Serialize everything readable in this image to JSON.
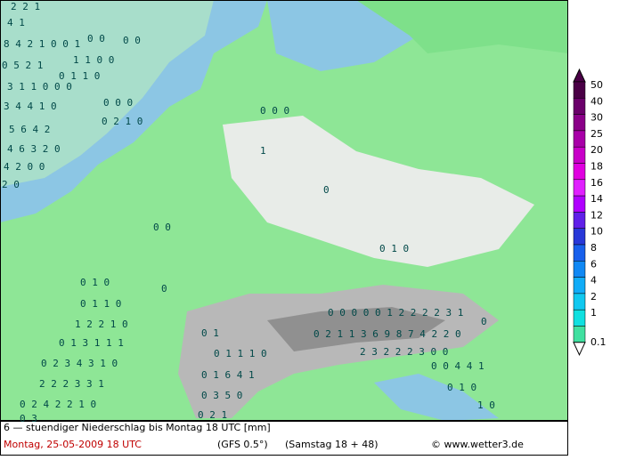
{
  "map": {
    "values": [
      "2 2 1",
      "4 1",
      "0 0",
      "0 0",
      "8 4 2 1 0 0 1",
      "1 1 0 0",
      "0 5 2 1",
      "0 1 1 0",
      "3 1 1 0 0 0",
      "0 0 0",
      "3 4 4 1 0",
      "0 2 1 0",
      "5 6 4 2",
      "4 6 3 2 0",
      "4 2 0 0",
      "2 0",
      "0 0 0",
      "1",
      "0",
      "0 0",
      "0 1 0",
      "0 1 0",
      "0",
      "0 1 1 0",
      "1 2 2 1 0",
      "0 1 3 1 1 1",
      "0 2 3 4 3 1 0",
      "2 2 2 3 3 1",
      "0 2 4 2 2 1 0",
      "0 3",
      "0 0 0 0 0 1 2 2 2 2 3 1",
      "0",
      "0 1",
      "0 2 1 1 3 6 9 8 7 4 2 2 0",
      "2 3 2 2 2 3 0 0",
      "0 1 1 1 0",
      "0 0 4 4 1",
      "0 1 6 4 1",
      "0 1 0",
      "0 3 5 0",
      "1 0",
      "0 2 1"
    ]
  },
  "legend": [
    {
      "label": "50",
      "color": "#4a0046"
    },
    {
      "label": "40",
      "color": "#6a006a"
    },
    {
      "label": "30",
      "color": "#8a0088"
    },
    {
      "label": "25",
      "color": "#a800a8"
    },
    {
      "label": "20",
      "color": "#c800c8"
    },
    {
      "label": "18",
      "color": "#e000e0"
    },
    {
      "label": "16",
      "color": "#e020ff"
    },
    {
      "label": "14",
      "color": "#b000ff"
    },
    {
      "label": "12",
      "color": "#6020e8"
    },
    {
      "label": "10",
      "color": "#2838d8"
    },
    {
      "label": "8",
      "color": "#1860ec"
    },
    {
      "label": "6",
      "color": "#1088f4"
    },
    {
      "label": "4",
      "color": "#10acf8"
    },
    {
      "label": "2",
      "color": "#10c8f0"
    },
    {
      "label": "1",
      "color": "#10e0e0"
    },
    {
      "label": "0.1",
      "color": "#40e0a0"
    }
  ],
  "footer": {
    "caption": "6 — stuendiger Niederschlag bis Montag 18 UTC [mm]",
    "date": "Montag, 25-05-2009   18 UTC",
    "model": "(GFS 0.5°)",
    "run": "(Samstag 18 + 48)",
    "credit": "© www.wetter3.de"
  }
}
